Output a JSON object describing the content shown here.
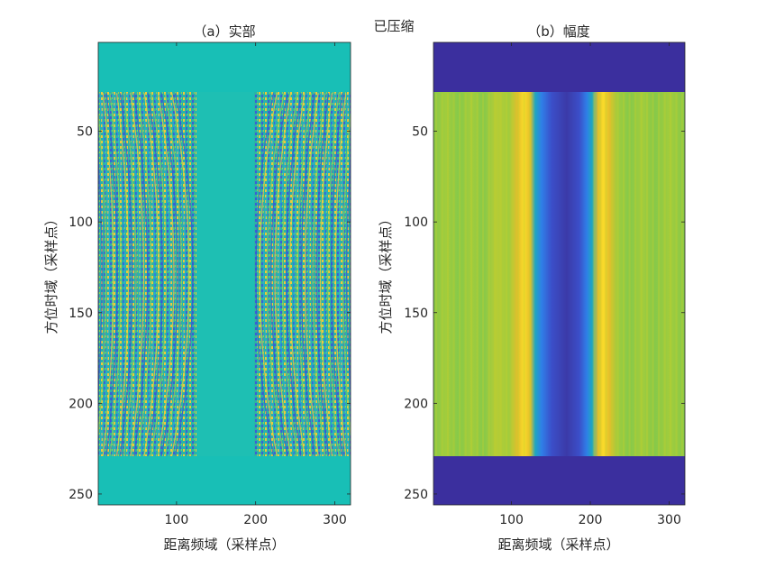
{
  "suptitle": "已压缩",
  "chart_data": [
    {
      "type": "heatmap",
      "title": "（a）实部",
      "xlabel": "距离频域（采样点）",
      "ylabel": "方位时域（采样点）",
      "xlim": [
        1,
        320
      ],
      "ylim": [
        1,
        256
      ],
      "y_reversed": true,
      "xticks": [
        100,
        200,
        300
      ],
      "yticks": [
        50,
        100,
        150,
        200,
        250
      ],
      "pad_value_color": "#18bfb6",
      "signal_rows": [
        29,
        229
      ],
      "signal_gap_columns": [
        125,
        198
      ],
      "signal_center_row": 129,
      "pattern": "real-part fringes: signal curved fringes on both sides, flat color in middle gap and padding rows"
    },
    {
      "type": "heatmap",
      "title": "（b）幅度",
      "xlabel": "距离频域（采样点）",
      "ylabel": "方位时域（采样点）",
      "xlim": [
        1,
        320
      ],
      "ylim": [
        1,
        256
      ],
      "y_reversed": true,
      "xticks": [
        100,
        200,
        300
      ],
      "yticks": [
        50,
        100,
        150,
        200,
        250
      ],
      "pad_value_color": "#3b2f9e",
      "signal_rows": [
        29,
        229
      ],
      "bright_peak_columns": [
        117,
        207
      ],
      "colormap": "parula"
    }
  ]
}
